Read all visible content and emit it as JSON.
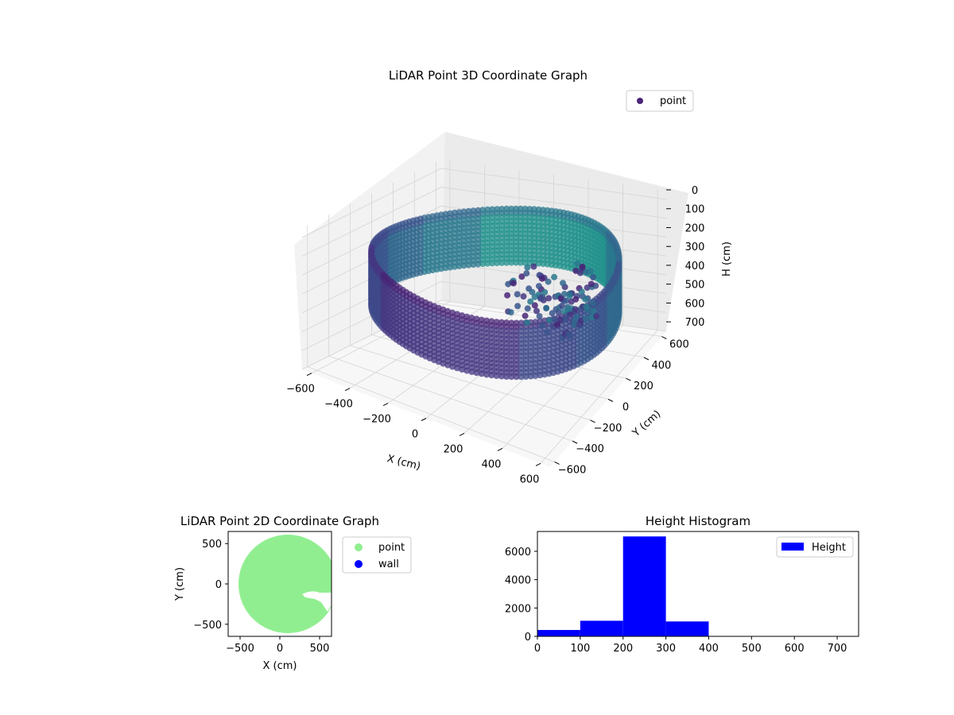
{
  "chart_data": [
    {
      "type": "scatter",
      "subtype": "3d",
      "title": "LiDAR Point 3D Coordinate Graph",
      "xlabel": "X (cm)",
      "ylabel": "Y (cm)",
      "zlabel": "H (cm)",
      "xticks": [
        "−600",
        "−400",
        "−200",
        "0",
        "200",
        "400",
        "600"
      ],
      "yticks": [
        "600",
        "400",
        "200",
        "0",
        "−200",
        "−400",
        "−600"
      ],
      "zticks": [
        "0",
        "100",
        "200",
        "300",
        "400",
        "500",
        "600",
        "700"
      ],
      "xlim": [
        -650,
        650
      ],
      "ylim": [
        -650,
        650
      ],
      "zlim": [
        0,
        750
      ],
      "z_inverted": true,
      "grid": true,
      "legend": {
        "position": "top-right",
        "entries": [
          "point"
        ]
      },
      "series": [
        {
          "name": "point",
          "color": "#482677",
          "colormap": "viridis",
          "shape": "ring scan of the room wall, radius ~600 cm, height ~150–450 cm, with an interior object cluster toward +X"
        }
      ]
    },
    {
      "type": "scatter",
      "title": "LiDAR Point 2D Coordinate Graph",
      "xlabel": "X (cm)",
      "ylabel": "Y (cm)",
      "xticks": [
        "−500",
        "0",
        "500"
      ],
      "yticks": [
        "500",
        "0",
        "−500"
      ],
      "xlim": [
        -650,
        650
      ],
      "ylim": [
        -650,
        650
      ],
      "legend": {
        "position": "outside-right",
        "entries": [
          "point",
          "wall"
        ]
      },
      "series": [
        {
          "name": "point",
          "color": "#90ee90",
          "center": [
            100,
            0
          ],
          "radius": 620
        },
        {
          "name": "wall",
          "color": "#0000ff"
        }
      ]
    },
    {
      "type": "bar",
      "subtype": "histogram",
      "title": "Height Histogram",
      "xticks": [
        "0",
        "100",
        "200",
        "300",
        "400",
        "500",
        "600",
        "700"
      ],
      "yticks": [
        "0",
        "2000",
        "4000",
        "6000"
      ],
      "xlim": [
        0,
        750
      ],
      "ylim": [
        0,
        7400
      ],
      "color": "#0000ff",
      "legend": {
        "position": "top-right",
        "entries": [
          "Height"
        ]
      },
      "bins": [
        {
          "from": 0,
          "to": 100,
          "value": 450
        },
        {
          "from": 100,
          "to": 200,
          "value": 1100
        },
        {
          "from": 200,
          "to": 300,
          "value": 7050
        },
        {
          "from": 300,
          "to": 400,
          "value": 1050
        },
        {
          "from": 400,
          "to": 500,
          "value": 0
        },
        {
          "from": 500,
          "to": 600,
          "value": 0
        },
        {
          "from": 600,
          "to": 700,
          "value": 0
        },
        {
          "from": 700,
          "to": 750,
          "value": 0
        }
      ]
    }
  ]
}
